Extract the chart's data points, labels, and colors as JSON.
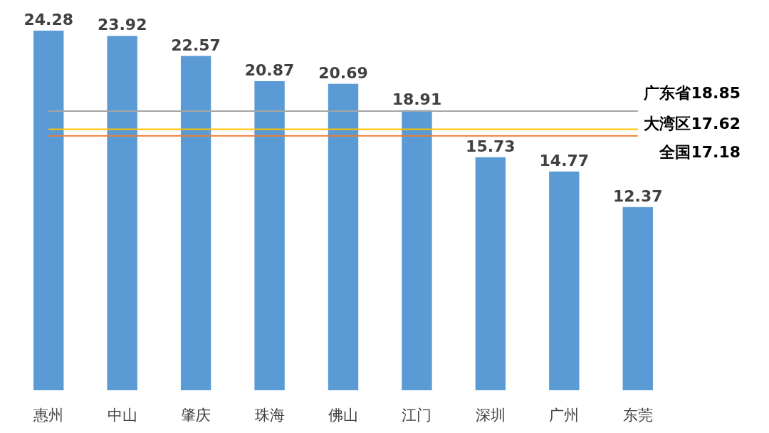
{
  "chart_data": {
    "type": "bar",
    "categories": [
      "惠州",
      "中山",
      "肇庆",
      "珠海",
      "佛山",
      "江门",
      "深圳",
      "广州",
      "东莞"
    ],
    "values": [
      24.28,
      23.92,
      22.57,
      20.87,
      20.69,
      18.91,
      15.73,
      14.77,
      12.37
    ],
    "color": "#5b9bd5",
    "data_labels": true,
    "ref_lines": [
      {
        "axis": "y",
        "value": 18.85,
        "label": "广东省18.85",
        "color": "#a5a5a5"
      },
      {
        "axis": "y",
        "value": 17.62,
        "label": "大湾区17.62",
        "color": "#ffc000"
      },
      {
        "axis": "y",
        "value": 17.18,
        "label": "全国17.18",
        "color": "#ed7d31"
      }
    ]
  }
}
